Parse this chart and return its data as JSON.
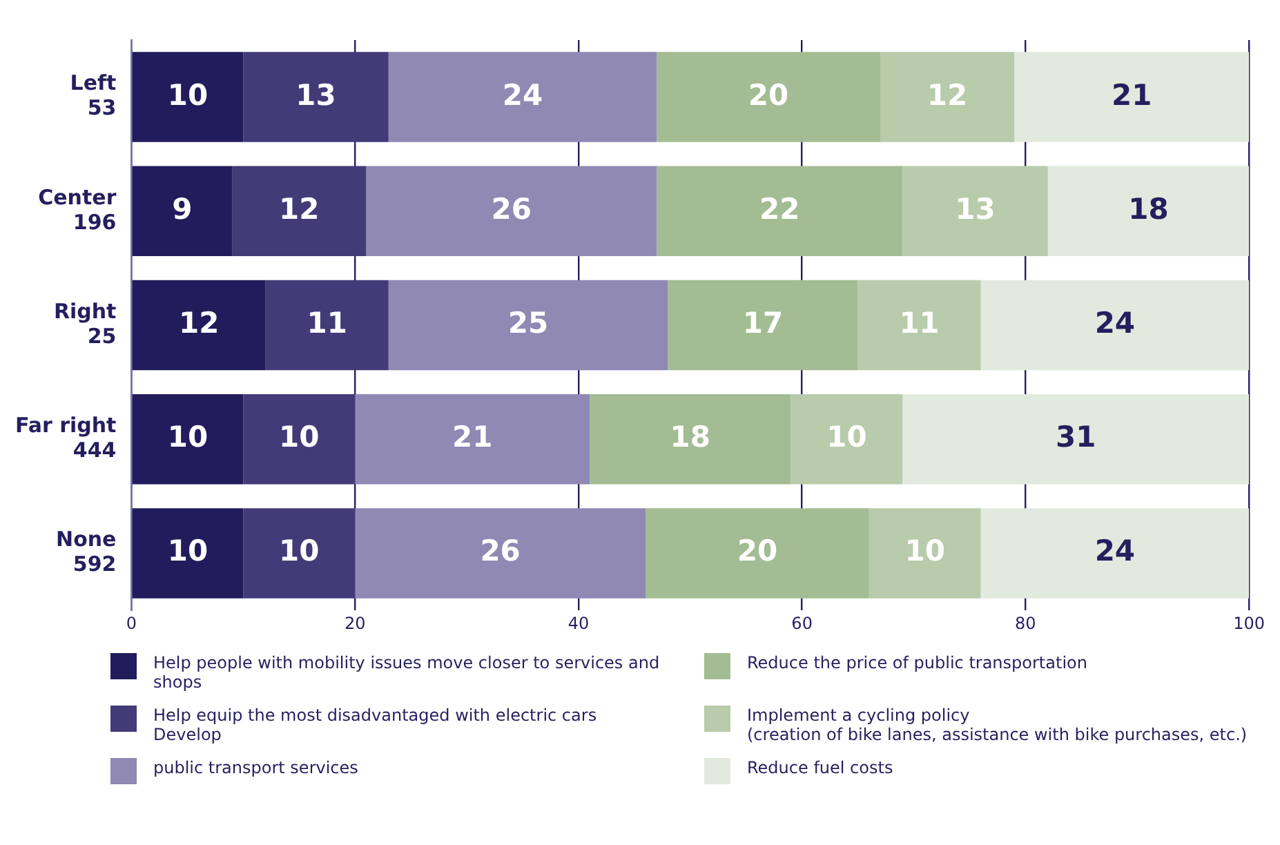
{
  "chart_data": {
    "type": "bar",
    "orientation": "horizontal",
    "stacked": true,
    "categories": [
      "Left\n53",
      "Center\n196",
      "Right\n25",
      "Far right\n444",
      "None\n592"
    ],
    "series": [
      {
        "name": "Help people with mobility issues move closer to services and shops",
        "color": "#221c5c",
        "values": [
          10,
          9,
          12,
          10,
          10
        ]
      },
      {
        "name": "Help equip the most disadvantaged with electric cars Develop",
        "color": "#433a78",
        "values": [
          13,
          12,
          11,
          10,
          10
        ]
      },
      {
        "name": "public transport services",
        "color": "#8f89b4",
        "values": [
          24,
          26,
          25,
          21,
          26
        ]
      },
      {
        "name": "Reduce the price of public transportation",
        "color": "#a3bc93",
        "values": [
          20,
          22,
          17,
          18,
          20
        ]
      },
      {
        "name": "Implement a cycling policy\n(creation of bike lanes, assistance with bike purchases, etc.)",
        "color": "#b8cbaa",
        "values": [
          12,
          13,
          11,
          10,
          10
        ]
      },
      {
        "name": "Reduce fuel costs",
        "color": "#e2eadf",
        "values": [
          21,
          18,
          24,
          31,
          24
        ]
      }
    ],
    "xlim": [
      0,
      100
    ],
    "xticks": [
      0,
      20,
      40,
      60,
      80,
      100
    ],
    "grid": "x",
    "legend": "bottom",
    "data_labels": true
  }
}
